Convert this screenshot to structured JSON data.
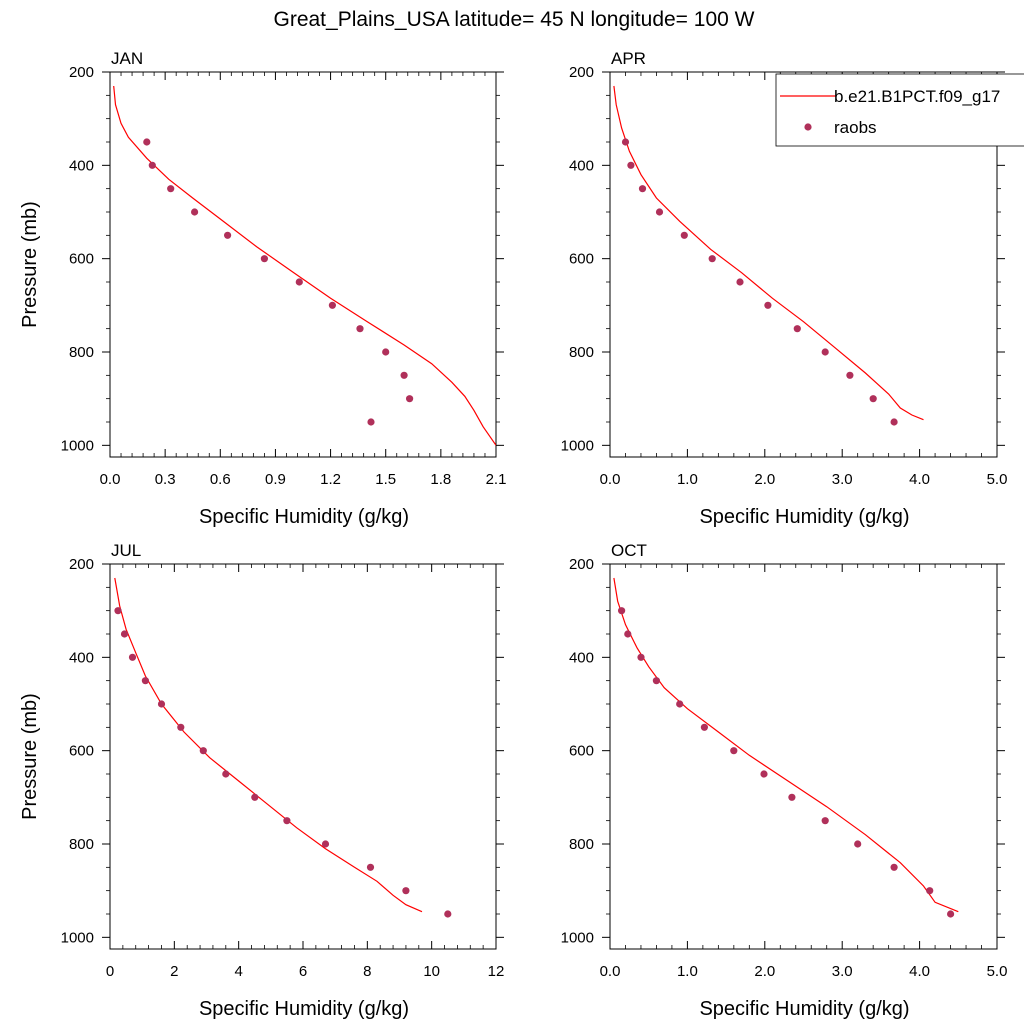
{
  "figure": {
    "title": "Great_Plains_USA  latitude= 45 N longitude= 100 W"
  },
  "legend": {
    "model_label": "b.e21.B1PCT.f09_g17",
    "obs_label": "raobs"
  },
  "colors": {
    "model_line": "#ff0000",
    "obs_marker": "#b0305a"
  },
  "chart_data": [
    {
      "type": "line+scatter",
      "panel": "JAN",
      "title": "JAN",
      "xlabel": "Specific Humidity (g/kg)",
      "ylabel": "Pressure (mb)",
      "xlim": [
        0,
        2.1
      ],
      "ylim": [
        200,
        1025
      ],
      "y_reversed": true,
      "xticks": [
        "0.0",
        "0.3",
        "0.6",
        "0.9",
        "1.2",
        "1.5",
        "1.8",
        "2.1"
      ],
      "xtick_values": [
        0,
        0.3,
        0.6,
        0.9,
        1.2,
        1.5,
        1.8,
        2.1
      ],
      "yticks": [
        "200",
        "400",
        "600",
        "800",
        "1000"
      ],
      "ytick_values": [
        200,
        400,
        600,
        800,
        1000
      ],
      "series": [
        {
          "name": "b.e21.B1PCT.f09_g17",
          "kind": "line",
          "x": [
            0.02,
            0.03,
            0.06,
            0.1,
            0.2,
            0.32,
            0.45,
            0.6,
            0.8,
            1.0,
            1.2,
            1.4,
            1.6,
            1.75,
            1.86,
            1.93,
            1.98,
            2.03,
            2.1
          ],
          "y": [
            230,
            270,
            310,
            340,
            385,
            430,
            470,
            515,
            575,
            630,
            685,
            735,
            785,
            825,
            865,
            895,
            925,
            960,
            1000
          ]
        },
        {
          "name": "raobs",
          "kind": "scatter",
          "x": [
            0.2,
            0.23,
            0.33,
            0.46,
            0.64,
            0.84,
            1.03,
            1.21,
            1.36,
            1.5,
            1.6,
            1.63,
            1.42
          ],
          "y": [
            350,
            400,
            450,
            500,
            550,
            600,
            650,
            700,
            750,
            800,
            850,
            900,
            950
          ]
        }
      ]
    },
    {
      "type": "line+scatter",
      "panel": "APR",
      "title": "APR",
      "xlabel": "Specific Humidity (g/kg)",
      "ylabel": "",
      "xlim": [
        0,
        5
      ],
      "ylim": [
        200,
        1025
      ],
      "y_reversed": true,
      "xticks": [
        "0.0",
        "1.0",
        "2.0",
        "3.0",
        "4.0",
        "5.0"
      ],
      "xtick_values": [
        0,
        1,
        2,
        3,
        4,
        5
      ],
      "yticks": [
        "200",
        "400",
        "600",
        "800",
        "1000"
      ],
      "ytick_values": [
        200,
        400,
        600,
        800,
        1000
      ],
      "series": [
        {
          "name": "b.e21.B1PCT.f09_g17",
          "kind": "line",
          "x": [
            0.05,
            0.08,
            0.15,
            0.25,
            0.4,
            0.6,
            0.9,
            1.3,
            1.7,
            2.1,
            2.5,
            2.9,
            3.3,
            3.6,
            3.75,
            3.9,
            4.05
          ],
          "y": [
            230,
            270,
            320,
            370,
            420,
            470,
            520,
            580,
            630,
            685,
            735,
            790,
            845,
            890,
            920,
            935,
            945
          ]
        },
        {
          "name": "raobs",
          "kind": "scatter",
          "x": [
            0.2,
            0.27,
            0.42,
            0.64,
            0.96,
            1.32,
            1.68,
            2.04,
            2.42,
            2.78,
            3.1,
            3.4,
            3.67
          ],
          "y": [
            350,
            400,
            450,
            500,
            550,
            600,
            650,
            700,
            750,
            800,
            850,
            900,
            950
          ]
        }
      ]
    },
    {
      "type": "line+scatter",
      "panel": "JUL",
      "title": "JUL",
      "xlabel": "Specific Humidity (g/kg)",
      "ylabel": "Pressure (mb)",
      "xlim": [
        0,
        12
      ],
      "ylim": [
        200,
        1025
      ],
      "y_reversed": true,
      "xticks": [
        "0",
        "2",
        "4",
        "6",
        "8",
        "10",
        "12"
      ],
      "xtick_values": [
        0,
        2,
        4,
        6,
        8,
        10,
        12
      ],
      "yticks": [
        "200",
        "400",
        "600",
        "800",
        "1000"
      ],
      "ytick_values": [
        200,
        400,
        600,
        800,
        1000
      ],
      "series": [
        {
          "name": "b.e21.B1PCT.f09_g17",
          "kind": "line",
          "x": [
            0.15,
            0.3,
            0.5,
            0.8,
            1.1,
            1.6,
            2.3,
            3.1,
            4.0,
            4.9,
            5.8,
            6.7,
            7.6,
            8.3,
            8.8,
            9.2,
            9.7
          ],
          "y": [
            230,
            290,
            340,
            390,
            440,
            500,
            560,
            615,
            665,
            715,
            765,
            810,
            850,
            880,
            910,
            930,
            945
          ]
        },
        {
          "name": "raobs",
          "kind": "scatter",
          "x": [
            0.25,
            0.45,
            0.7,
            1.1,
            1.6,
            2.2,
            2.9,
            3.6,
            4.5,
            5.5,
            6.7,
            8.1,
            9.2,
            10.5
          ],
          "y": [
            300,
            350,
            400,
            450,
            500,
            550,
            600,
            650,
            700,
            750,
            800,
            850,
            900,
            950
          ]
        }
      ]
    },
    {
      "type": "line+scatter",
      "panel": "OCT",
      "title": "OCT",
      "xlabel": "Specific Humidity (g/kg)",
      "ylabel": "",
      "xlim": [
        0,
        5
      ],
      "ylim": [
        200,
        1025
      ],
      "y_reversed": true,
      "xticks": [
        "0.0",
        "1.0",
        "2.0",
        "3.0",
        "4.0",
        "5.0"
      ],
      "xtick_values": [
        0,
        1,
        2,
        3,
        4,
        5
      ],
      "yticks": [
        "200",
        "400",
        "600",
        "800",
        "1000"
      ],
      "ytick_values": [
        200,
        400,
        600,
        800,
        1000
      ],
      "series": [
        {
          "name": "b.e21.B1PCT.f09_g17",
          "kind": "line",
          "x": [
            0.05,
            0.1,
            0.2,
            0.35,
            0.5,
            0.7,
            1.0,
            1.4,
            1.8,
            2.3,
            2.8,
            3.3,
            3.75,
            4.05,
            4.2,
            4.5
          ],
          "y": [
            230,
            280,
            330,
            380,
            420,
            465,
            510,
            560,
            610,
            665,
            720,
            780,
            840,
            890,
            925,
            945
          ]
        },
        {
          "name": "raobs",
          "kind": "scatter",
          "x": [
            0.15,
            0.23,
            0.4,
            0.6,
            0.9,
            1.22,
            1.6,
            1.99,
            2.35,
            2.78,
            3.2,
            3.67,
            4.13,
            4.4
          ],
          "y": [
            300,
            350,
            400,
            450,
            500,
            550,
            600,
            650,
            700,
            750,
            800,
            850,
            900,
            950
          ]
        }
      ]
    }
  ]
}
